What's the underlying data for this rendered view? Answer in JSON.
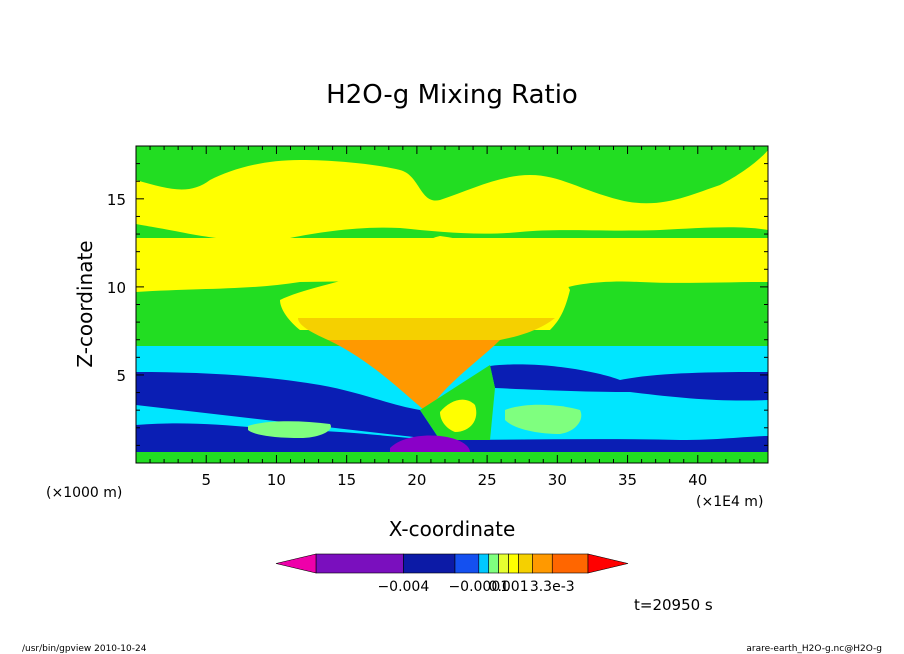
{
  "chart_data": {
    "type": "heatmap",
    "title": "H2O-g Mixing Ratio",
    "xlabel": "X-coordinate",
    "ylabel": "Z-coordinate",
    "x_unit_left": "(×1000 m)",
    "x_unit_right": "(×1E4 m)",
    "xlim": [
      0,
      45
    ],
    "ylim": [
      0,
      18
    ],
    "xticks": [
      5,
      10,
      15,
      20,
      25,
      30,
      35,
      40
    ],
    "xtick_labels": [
      "5",
      "10",
      "15",
      "20",
      "25",
      "30",
      "35",
      "40"
    ],
    "yticks": [
      5,
      10,
      15
    ],
    "ytick_labels": [
      "5",
      "10",
      "15"
    ],
    "colorbar": {
      "colors": [
        "#ee00aa",
        "#7a0fbe",
        "#0c1aa6",
        "#1450f0",
        "#00c8ff",
        "#7fff7f",
        "#e6ff30",
        "#ffff00",
        "#f5d000",
        "#ff9900",
        "#ff6600",
        "#ff0000"
      ],
      "labels": [
        "−0.004",
        "−0.0001",
        "0.001",
        "3.3e-3"
      ]
    },
    "time_label": "t=20950 s",
    "region_colors": {
      "green": "#22dd22",
      "yellow": "#ffff00",
      "cyan": "#00e6ff",
      "blue": "#0a1eb4",
      "orange": "#ff9900",
      "purple": "#8a00c8"
    }
  },
  "footer": {
    "left": "/usr/bin/gpview   2010-10-24",
    "right": "arare-earth_H2O-g.nc@H2O-g"
  }
}
